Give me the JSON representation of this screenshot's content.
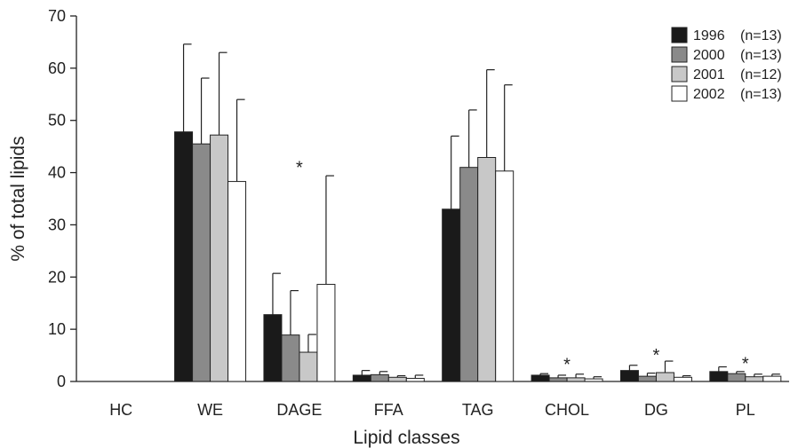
{
  "chart_data": {
    "type": "bar",
    "title": "",
    "xlabel": "Lipid classes",
    "ylabel": "% of total lipids",
    "ylim": [
      0,
      70
    ],
    "yticks": [
      0,
      10,
      20,
      30,
      40,
      50,
      60,
      70
    ],
    "grid": false,
    "legend_position": "top-right",
    "categories": [
      "HC",
      "WE",
      "DAGE",
      "FFA",
      "TAG",
      "CHOL",
      "DG",
      "PL"
    ],
    "series": [
      {
        "name": "1996",
        "n_label": "(n=13)",
        "color": "#1a1a1a",
        "values": [
          0,
          47.8,
          12.8,
          1.2,
          33.0,
          1.2,
          2.1,
          1.9
        ],
        "errors": [
          0,
          16.8,
          7.9,
          0.9,
          14.0,
          0.3,
          1.0,
          0.9
        ]
      },
      {
        "name": "2000",
        "n_label": "(n=13)",
        "color": "#8a8a8a",
        "values": [
          0,
          45.5,
          8.9,
          1.3,
          41.0,
          0.7,
          1.0,
          1.5
        ],
        "errors": [
          0,
          12.6,
          8.5,
          0.6,
          11.0,
          0.5,
          0.6,
          0.4
        ]
      },
      {
        "name": "2001",
        "n_label": "(n=12)",
        "color": "#c8c8c8",
        "values": [
          0,
          47.2,
          5.6,
          0.8,
          42.9,
          0.7,
          1.7,
          0.9
        ],
        "errors": [
          0,
          15.8,
          3.4,
          0.3,
          16.8,
          0.7,
          2.2,
          0.5
        ]
      },
      {
        "name": "2002",
        "n_label": "(n=13)",
        "color": "#ffffff",
        "values": [
          0,
          38.3,
          18.6,
          0.6,
          40.3,
          0.5,
          0.8,
          1.0
        ],
        "errors": [
          0,
          15.7,
          20.8,
          0.6,
          16.5,
          0.4,
          0.3,
          0.4
        ]
      }
    ],
    "annotations": [
      {
        "category": "DAGE",
        "text": "*",
        "y": 41.5
      },
      {
        "category": "CHOL",
        "text": "*",
        "y": 3.8
      },
      {
        "category": "DG",
        "text": "*",
        "y": 5.6
      },
      {
        "category": "PL",
        "text": "*",
        "y": 4.0
      }
    ]
  }
}
